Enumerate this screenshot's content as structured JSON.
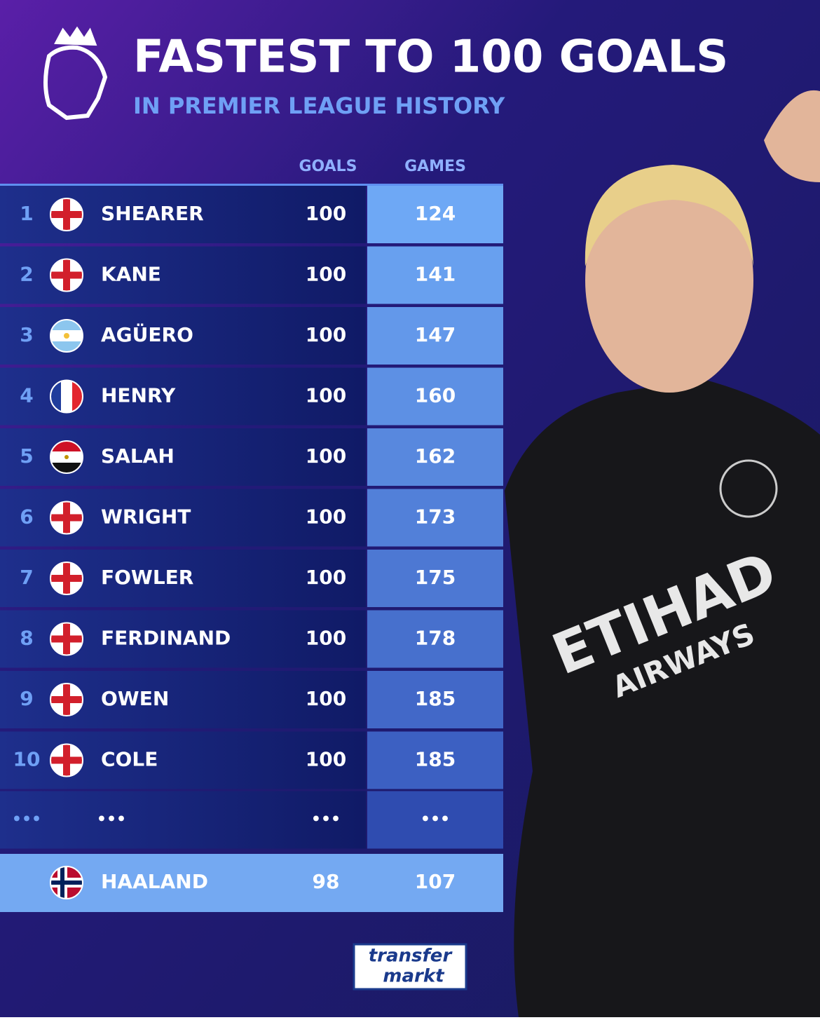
{
  "header": {
    "title": "FASTEST TO 100 GOALS",
    "subtitle": "IN PREMIER LEAGUE HISTORY"
  },
  "table": {
    "columns": [
      "GOALS",
      "GAMES"
    ],
    "rows": [
      {
        "rank": 1,
        "flag": "eng",
        "name": "SHEARER",
        "goals": 100,
        "games": 124
      },
      {
        "rank": 2,
        "flag": "eng",
        "name": "KANE",
        "goals": 100,
        "games": 141
      },
      {
        "rank": 3,
        "flag": "arg",
        "name": "AGÜERO",
        "goals": 100,
        "games": 147
      },
      {
        "rank": 4,
        "flag": "fra",
        "name": "HENRY",
        "goals": 100,
        "games": 160
      },
      {
        "rank": 5,
        "flag": "egy",
        "name": "SALAH",
        "goals": 100,
        "games": 162
      },
      {
        "rank": 6,
        "flag": "eng",
        "name": "WRIGHT",
        "goals": 100,
        "games": 173
      },
      {
        "rank": 7,
        "flag": "eng",
        "name": "FOWLER",
        "goals": 100,
        "games": 175
      },
      {
        "rank": 8,
        "flag": "eng",
        "name": "FERDINAND",
        "goals": 100,
        "games": 178
      },
      {
        "rank": 9,
        "flag": "eng",
        "name": "OWEN",
        "goals": 100,
        "games": 185
      },
      {
        "rank": 10,
        "flag": "eng",
        "name": "COLE",
        "goals": 100,
        "games": 185
      }
    ],
    "ellipsis": [
      "•••",
      "•••",
      "•••",
      "•••"
    ],
    "highlight": {
      "flag": "nor",
      "name": "HAALAND",
      "goals": 98,
      "games": 107
    }
  },
  "photo": {
    "sponsor": "ETIHAD",
    "sponsor_sub": "AIRWAYS"
  },
  "footer": {
    "logo_top": "transfer",
    "logo_bottom": "markt"
  }
}
